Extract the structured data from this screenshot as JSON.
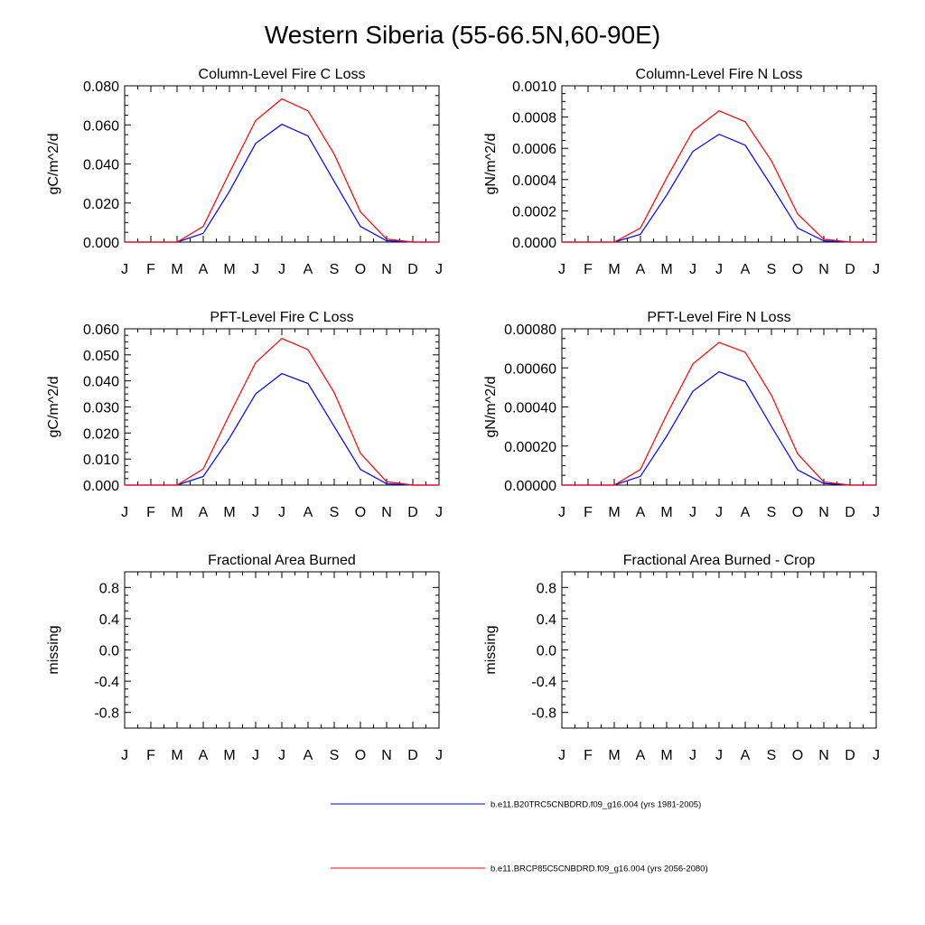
{
  "figure": {
    "title": "Western Siberia (55-66.5N,60-90E)"
  },
  "colors": {
    "series_1": "#0000ff",
    "series_2": "#ff0000",
    "axis": "#000000"
  },
  "legend": [
    {
      "label": "b.e11.B20TRC5CNBDRD.f09_g16.004 (yrs 1981-2005)",
      "color": "#0000ff"
    },
    {
      "label": "b.e11.BRCP85C5CNBDRD.f09_g16.004 (yrs 2056-2080)",
      "color": "#ff0000"
    }
  ],
  "chart_data": [
    {
      "type": "line",
      "title": "Column-Level Fire C Loss",
      "ylabel": "gC/m^2/d",
      "xlabel": "",
      "x": [
        "J",
        "F",
        "M",
        "A",
        "M",
        "J",
        "J",
        "A",
        "S",
        "O",
        "N",
        "D",
        "J"
      ],
      "ylim": [
        0,
        0.08
      ],
      "yticks": [
        0,
        0.02,
        0.04,
        0.06,
        0.08
      ],
      "ytick_labels": [
        "0.000",
        "0.020",
        "0.040",
        "0.060",
        "0.080"
      ],
      "series": [
        {
          "values": [
            0,
            0,
            0,
            0.0045,
            0.026,
            0.0505,
            0.0603,
            0.0543,
            0.031,
            0.008,
            0.0007,
            0,
            0
          ]
        },
        {
          "values": [
            0,
            0,
            0,
            0.008,
            0.0355,
            0.0622,
            0.0733,
            0.0672,
            0.045,
            0.0155,
            0.0015,
            0,
            0
          ]
        }
      ]
    },
    {
      "type": "line",
      "title": "Column-Level Fire N Loss",
      "ylabel": "gN/m^2/d",
      "xlabel": "",
      "x": [
        "J",
        "F",
        "M",
        "A",
        "M",
        "J",
        "J",
        "A",
        "S",
        "O",
        "N",
        "D",
        "J"
      ],
      "ylim": [
        0,
        0.001
      ],
      "yticks": [
        0,
        0.0002,
        0.0004,
        0.0006,
        0.0008,
        0.001
      ],
      "ytick_labels": [
        "0.0000",
        "0.0002",
        "0.0004",
        "0.0006",
        "0.0008",
        "0.0010"
      ],
      "series": [
        {
          "values": [
            0,
            0,
            0,
            5e-05,
            0.0003,
            0.00058,
            0.00069,
            0.00062,
            0.00036,
            9e-05,
            8e-06,
            0,
            0
          ]
        },
        {
          "values": [
            0,
            0,
            0,
            9e-05,
            0.00041,
            0.00071,
            0.00084,
            0.00077,
            0.00052,
            0.00018,
            1.8e-05,
            0,
            0
          ]
        }
      ]
    },
    {
      "type": "line",
      "title": "PFT-Level Fire C Loss",
      "ylabel": "gC/m^2/d",
      "xlabel": "",
      "x": [
        "J",
        "F",
        "M",
        "A",
        "M",
        "J",
        "J",
        "A",
        "S",
        "O",
        "N",
        "D",
        "J"
      ],
      "ylim": [
        0,
        0.06
      ],
      "yticks": [
        0,
        0.01,
        0.02,
        0.03,
        0.04,
        0.05,
        0.06
      ],
      "ytick_labels": [
        "0.000",
        "0.010",
        "0.020",
        "0.030",
        "0.040",
        "0.050",
        "0.060"
      ],
      "series": [
        {
          "values": [
            0,
            0,
            0,
            0.0033,
            0.018,
            0.035,
            0.0428,
            0.039,
            0.0225,
            0.006,
            0.0005,
            0,
            0
          ]
        },
        {
          "values": [
            0,
            0,
            0,
            0.0062,
            0.027,
            0.047,
            0.0563,
            0.052,
            0.0355,
            0.0122,
            0.0013,
            0,
            0
          ]
        }
      ]
    },
    {
      "type": "line",
      "title": "PFT-Level Fire N Loss",
      "ylabel": "gN/m^2/d",
      "xlabel": "",
      "x": [
        "J",
        "F",
        "M",
        "A",
        "M",
        "J",
        "J",
        "A",
        "S",
        "O",
        "N",
        "D",
        "J"
      ],
      "ylim": [
        0,
        0.0008
      ],
      "yticks": [
        0,
        0.0002,
        0.0004,
        0.0006,
        0.0008
      ],
      "ytick_labels": [
        "0.00000",
        "0.00020",
        "0.00040",
        "0.00060",
        "0.00080"
      ],
      "series": [
        {
          "values": [
            0,
            0,
            0,
            4.5e-05,
            0.00025,
            0.00048,
            0.00058,
            0.00053,
            0.0003,
            7.8e-05,
            8e-06,
            0,
            0
          ]
        },
        {
          "values": [
            0,
            0,
            0,
            8e-05,
            0.00036,
            0.00062,
            0.00073,
            0.00068,
            0.00046,
            0.00016,
            1.6e-05,
            0,
            0
          ]
        }
      ]
    },
    {
      "type": "line",
      "title": "Fractional Area Burned",
      "ylabel": "missing",
      "xlabel": "",
      "x": [
        "J",
        "F",
        "M",
        "A",
        "M",
        "J",
        "J",
        "A",
        "S",
        "O",
        "N",
        "D",
        "J"
      ],
      "ylim": [
        -1,
        1
      ],
      "yticks": [
        -0.8,
        -0.4,
        0,
        0.4,
        0.8
      ],
      "ytick_labels": [
        "-0.8",
        "-0.4",
        "0.0",
        "0.4",
        "0.8"
      ],
      "series": []
    },
    {
      "type": "line",
      "title": "Fractional Area Burned - Crop",
      "ylabel": "missing",
      "xlabel": "",
      "x": [
        "J",
        "F",
        "M",
        "A",
        "M",
        "J",
        "J",
        "A",
        "S",
        "O",
        "N",
        "D",
        "J"
      ],
      "ylim": [
        -1,
        1
      ],
      "yticks": [
        -0.8,
        -0.4,
        0,
        0.4,
        0.8
      ],
      "ytick_labels": [
        "-0.8",
        "-0.4",
        "0.0",
        "0.4",
        "0.8"
      ],
      "series": []
    }
  ]
}
